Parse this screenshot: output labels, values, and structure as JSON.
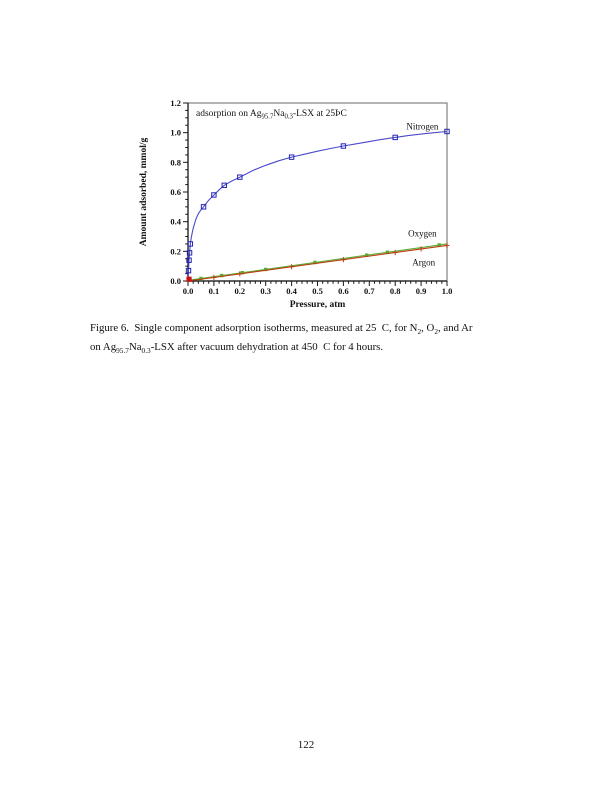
{
  "page": {
    "number": "122"
  },
  "caption": {
    "line1": [
      {
        "t": "Figure 6.  Single component adsorption isotherms, measured at 25  C, for N"
      },
      {
        "t": "2",
        "sub": true
      },
      {
        "t": ", O"
      },
      {
        "t": "2",
        "sub": true
      },
      {
        "t": ", and Ar"
      }
    ],
    "line2": [
      {
        "t": "on Ag"
      },
      {
        "t": "95.7",
        "sub": true
      },
      {
        "t": "Na"
      },
      {
        "t": "0.3",
        "sub": true
      },
      {
        "t": "-LSX after vacuum dehydration at 450  C for 4 hours."
      }
    ]
  },
  "chart_data": {
    "type": "line",
    "title_segments": [
      {
        "t": "adsorption on Ag"
      },
      {
        "t": "95.7",
        "sub": true
      },
      {
        "t": "Na"
      },
      {
        "t": "0.3",
        "sub": true
      },
      {
        "t": "-LSX at 25ÞC"
      }
    ],
    "xlabel": "Pressure, atm",
    "ylabel": "Amount adsorbed, mmol/g",
    "xlim": [
      0,
      1.0
    ],
    "ylim": [
      0,
      1.2
    ],
    "x_major": 0.1,
    "x_minor": 0.02,
    "y_major": 0.2,
    "y_minor": 0.05,
    "xtick_labels": [
      "0.0",
      "0.1",
      "0.2",
      "0.3",
      "0.4",
      "0.5",
      "0.6",
      "0.7",
      "0.8",
      "0.9",
      "1.0"
    ],
    "ytick_labels": [
      "0.0",
      "0.2",
      "0.4",
      "0.6",
      "0.8",
      "1.0",
      "1.2"
    ],
    "grid": false,
    "legend_position": "inline-labels",
    "colors": {
      "frame": "#8a8a8a",
      "axis": "#1a1a1a"
    },
    "origin_marker": {
      "x": 0.004,
      "y": 0.012,
      "color": "#cc1111"
    },
    "series": [
      {
        "name": "Nitrogen",
        "color": "#4a4acc",
        "marker_color": "#2525b5",
        "marker": "square-open",
        "label_x": 0.905,
        "label_y": 1.02,
        "curve": [
          [
            0.001,
            0.02
          ],
          [
            0.002,
            0.07
          ],
          [
            0.003,
            0.11
          ],
          [
            0.004,
            0.14
          ],
          [
            0.005,
            0.17
          ],
          [
            0.006,
            0.19
          ],
          [
            0.008,
            0.235
          ],
          [
            0.01,
            0.265
          ],
          [
            0.015,
            0.315
          ],
          [
            0.02,
            0.355
          ],
          [
            0.03,
            0.415
          ],
          [
            0.04,
            0.455
          ],
          [
            0.05,
            0.48
          ],
          [
            0.06,
            0.5
          ],
          [
            0.08,
            0.545
          ],
          [
            0.1,
            0.58
          ],
          [
            0.12,
            0.615
          ],
          [
            0.14,
            0.645
          ],
          [
            0.17,
            0.675
          ],
          [
            0.2,
            0.7
          ],
          [
            0.25,
            0.745
          ],
          [
            0.3,
            0.78
          ],
          [
            0.35,
            0.81
          ],
          [
            0.4,
            0.835
          ],
          [
            0.45,
            0.855
          ],
          [
            0.5,
            0.875
          ],
          [
            0.55,
            0.893
          ],
          [
            0.6,
            0.91
          ],
          [
            0.65,
            0.925
          ],
          [
            0.7,
            0.94
          ],
          [
            0.75,
            0.955
          ],
          [
            0.8,
            0.968
          ],
          [
            0.85,
            0.98
          ],
          [
            0.9,
            0.99
          ],
          [
            0.95,
            1.0
          ],
          [
            1.0,
            1.008
          ]
        ],
        "markers": [
          [
            0.002,
            0.07
          ],
          [
            0.004,
            0.14
          ],
          [
            0.006,
            0.19
          ],
          [
            0.009,
            0.25
          ],
          [
            0.06,
            0.5
          ],
          [
            0.1,
            0.58
          ],
          [
            0.14,
            0.645
          ],
          [
            0.2,
            0.7
          ],
          [
            0.4,
            0.835
          ],
          [
            0.6,
            0.91
          ],
          [
            0.8,
            0.968
          ],
          [
            1.0,
            1.008
          ]
        ]
      },
      {
        "name": "Oxygen",
        "color": "#5aab33",
        "marker_color": "#5aab33",
        "marker": "square-filled",
        "label_x": 0.905,
        "label_y": 0.3,
        "curve": [
          [
            0,
            0.005
          ],
          [
            1.0,
            0.25
          ]
        ],
        "markers": [
          [
            0.05,
            0.017
          ],
          [
            0.13,
            0.037
          ],
          [
            0.21,
            0.056
          ],
          [
            0.3,
            0.078
          ],
          [
            0.49,
            0.125
          ],
          [
            0.69,
            0.174
          ],
          [
            0.77,
            0.194
          ],
          [
            0.97,
            0.243
          ]
        ]
      },
      {
        "name": "Argon",
        "color": "#bb3d10",
        "marker_color": "#bb3d10",
        "marker": "plus",
        "label_x": 0.91,
        "label_y": 0.105,
        "curve": [
          [
            0,
            0.0
          ],
          [
            1.0,
            0.24
          ]
        ],
        "markers": [
          [
            0.1,
            0.024
          ],
          [
            0.2,
            0.048
          ],
          [
            0.4,
            0.096
          ],
          [
            0.6,
            0.144
          ],
          [
            0.8,
            0.192
          ],
          [
            0.9,
            0.216
          ],
          [
            1.0,
            0.24
          ]
        ]
      }
    ]
  }
}
